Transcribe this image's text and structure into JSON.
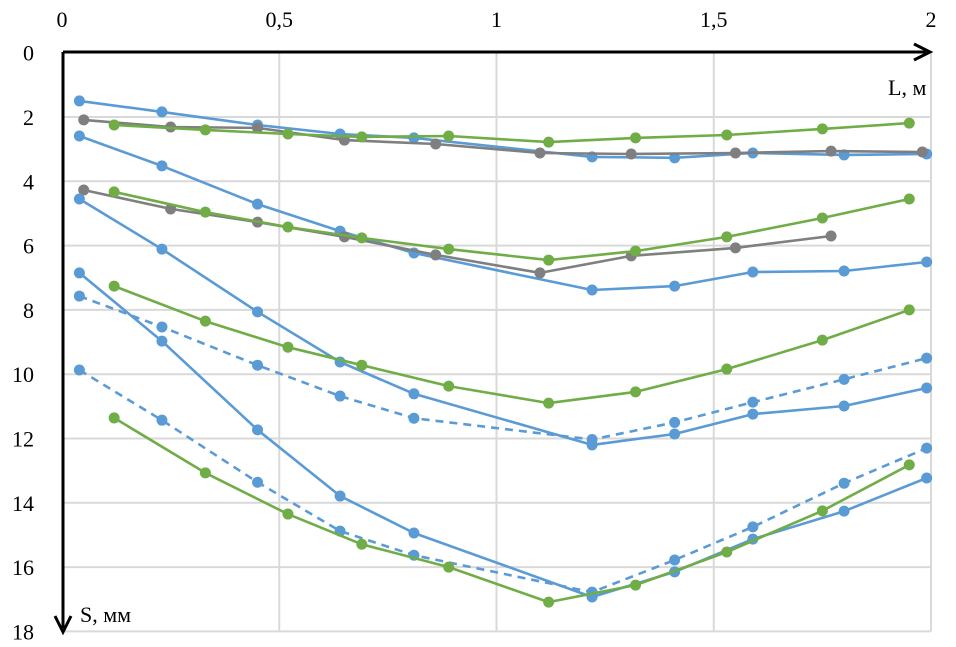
{
  "chart_data": {
    "type": "line",
    "title": "",
    "xlabel": "L, м",
    "ylabel": "S, мм",
    "xlim": [
      0,
      2
    ],
    "ylim": [
      0,
      18
    ],
    "y_inverted": true,
    "x_axis_position": "top",
    "x_ticks": [
      "0",
      "0,5",
      "1",
      "1,5",
      "2"
    ],
    "x_tick_values": [
      0,
      0.5,
      1,
      1.5,
      2
    ],
    "y_ticks": [
      "0",
      "2",
      "4",
      "6",
      "8",
      "10",
      "12",
      "14",
      "16",
      "18"
    ],
    "y_tick_values": [
      0,
      2,
      4,
      6,
      8,
      10,
      12,
      14,
      16,
      18
    ],
    "grid": true,
    "legend": "none",
    "colors": {
      "blue": "#5b9bd5",
      "green": "#70ad47",
      "gray": "#7f7f7f"
    },
    "series": [
      {
        "name": "blue-1",
        "color": "blue",
        "dashed": false,
        "x": [
          0.04,
          0.23,
          0.45,
          0.64,
          0.81,
          1.22,
          1.41,
          1.59,
          1.8,
          1.99
        ],
        "y": [
          1.5,
          1.84,
          2.25,
          2.53,
          2.65,
          3.24,
          3.27,
          3.12,
          3.18,
          3.15
        ]
      },
      {
        "name": "gray-1",
        "color": "gray",
        "dashed": false,
        "x": [
          0.05,
          0.25,
          0.45,
          0.65,
          0.86,
          1.1,
          1.31,
          1.55,
          1.77,
          1.98
        ],
        "y": [
          2.09,
          2.31,
          2.34,
          2.72,
          2.84,
          3.12,
          3.15,
          3.12,
          3.06,
          3.09
        ]
      },
      {
        "name": "green-1",
        "color": "green",
        "dashed": false,
        "x": [
          0.12,
          0.33,
          0.52,
          0.69,
          0.89,
          1.12,
          1.32,
          1.53,
          1.75,
          1.95
        ],
        "y": [
          2.25,
          2.4,
          2.53,
          2.62,
          2.59,
          2.78,
          2.65,
          2.56,
          2.37,
          2.19
        ]
      },
      {
        "name": "blue-2",
        "color": "blue",
        "dashed": false,
        "x": [
          0.04,
          0.23,
          0.45,
          0.64,
          0.81,
          1.22,
          1.41,
          1.59,
          1.8,
          1.99
        ],
        "y": [
          2.59,
          3.52,
          4.71,
          5.55,
          6.23,
          7.38,
          7.26,
          6.82,
          6.79,
          6.51
        ]
      },
      {
        "name": "gray-2",
        "color": "gray",
        "dashed": false,
        "x": [
          0.05,
          0.25,
          0.45,
          0.65,
          0.86,
          1.1,
          1.31,
          1.55,
          1.77
        ],
        "y": [
          4.27,
          4.86,
          5.27,
          5.73,
          6.29,
          6.85,
          6.32,
          6.07,
          5.7
        ]
      },
      {
        "name": "green-2",
        "color": "green",
        "dashed": false,
        "x": [
          0.12,
          0.33,
          0.52,
          0.69,
          0.89,
          1.12,
          1.32,
          1.53,
          1.75,
          1.95
        ],
        "y": [
          4.33,
          4.96,
          5.42,
          5.76,
          6.11,
          6.45,
          6.17,
          5.73,
          5.14,
          4.55
        ]
      },
      {
        "name": "blue-3",
        "color": "blue",
        "dashed": false,
        "x": [
          0.04,
          0.23,
          0.45,
          0.64,
          0.81,
          1.22,
          1.41,
          1.59,
          1.8,
          1.99
        ],
        "y": [
          4.55,
          6.11,
          8.06,
          9.62,
          10.61,
          12.2,
          11.86,
          11.24,
          10.99,
          10.43
        ]
      },
      {
        "name": "green-3",
        "color": "green",
        "dashed": false,
        "x": [
          0.12,
          0.33,
          0.52,
          0.69,
          0.89,
          1.12,
          1.32,
          1.53,
          1.75,
          1.95
        ],
        "y": [
          7.26,
          8.35,
          9.16,
          9.72,
          10.37,
          10.9,
          10.55,
          9.84,
          8.94,
          8.0
        ]
      },
      {
        "name": "blue-dashed-1",
        "color": "blue",
        "dashed": true,
        "x": [
          0.04,
          0.23,
          0.45,
          0.64,
          0.81,
          1.22,
          1.41,
          1.59,
          1.8,
          1.99
        ],
        "y": [
          7.57,
          8.53,
          9.72,
          10.68,
          11.37,
          12.03,
          11.5,
          10.87,
          10.16,
          9.5
        ]
      },
      {
        "name": "blue-4",
        "color": "blue",
        "dashed": false,
        "x": [
          0.04,
          0.23,
          0.45,
          0.64,
          0.81,
          1.22,
          1.41,
          1.59,
          1.8,
          1.99
        ],
        "y": [
          6.85,
          8.97,
          11.73,
          13.79,
          14.94,
          16.93,
          16.15,
          15.13,
          14.26,
          13.23
        ]
      },
      {
        "name": "blue-dashed-2",
        "color": "blue",
        "dashed": true,
        "x": [
          0.04,
          0.23,
          0.45,
          0.64,
          0.81,
          1.22,
          1.41,
          1.59,
          1.8,
          1.99
        ],
        "y": [
          9.87,
          11.43,
          13.36,
          14.88,
          15.63,
          16.78,
          15.78,
          14.75,
          13.39,
          12.3
        ]
      },
      {
        "name": "green-4",
        "color": "green",
        "dashed": false,
        "x": [
          0.12,
          0.33,
          0.52,
          0.69,
          0.89,
          1.12,
          1.32,
          1.53,
          1.75,
          1.95
        ],
        "y": [
          11.36,
          13.07,
          14.35,
          15.29,
          16.0,
          17.09,
          16.56,
          15.53,
          14.25,
          12.82
        ]
      }
    ]
  }
}
